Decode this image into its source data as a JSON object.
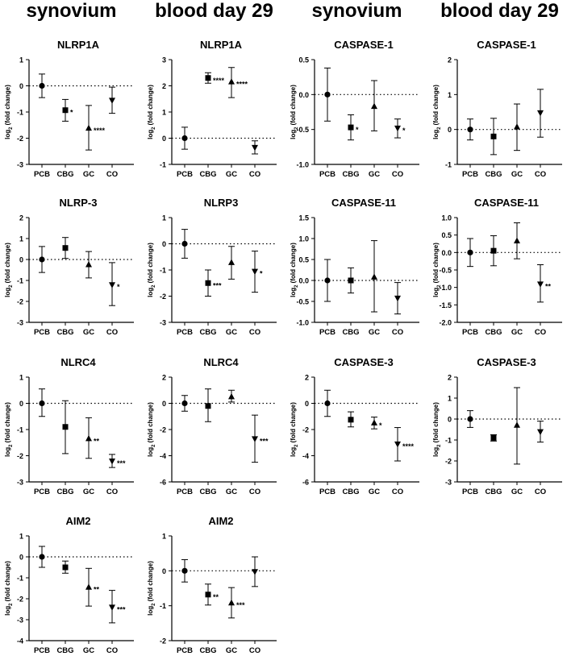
{
  "column_headers": [
    "synovium",
    "blood day 29",
    "synovium",
    "blood day 29"
  ],
  "ylabel": "log2 (fold change)",
  "chart_data": [
    {
      "type": "scatter",
      "title": "NLRP1A",
      "categories": [
        "PCB",
        "CBG",
        "GC",
        "CO"
      ],
      "ylim": [
        -3,
        1
      ],
      "yticks": [
        -3,
        -2,
        -1,
        0,
        1
      ],
      "markers": [
        "circle",
        "square",
        "triangle-up",
        "triangle-down"
      ],
      "points": [
        {
          "mean": 0,
          "low": -0.45,
          "high": 0.45,
          "sig": ""
        },
        {
          "mean": -0.93,
          "low": -1.35,
          "high": -0.52,
          "sig": "*"
        },
        {
          "mean": -1.62,
          "low": -2.45,
          "high": -0.75,
          "sig": "****"
        },
        {
          "mean": -0.55,
          "low": -1.05,
          "high": -0.05,
          "sig": ""
        }
      ]
    },
    {
      "type": "scatter",
      "title": "NLRP1A",
      "categories": [
        "PCB",
        "CBG",
        "GC",
        "CO"
      ],
      "ylim": [
        -1,
        3
      ],
      "yticks": [
        -1,
        0,
        1,
        2,
        3
      ],
      "markers": [
        "circle",
        "square",
        "triangle-up",
        "triangle-down"
      ],
      "points": [
        {
          "mean": 0,
          "low": -0.42,
          "high": 0.42,
          "sig": ""
        },
        {
          "mean": 2.3,
          "low": 2.1,
          "high": 2.5,
          "sig": "****"
        },
        {
          "mean": 2.15,
          "low": 1.55,
          "high": 2.7,
          "sig": "****"
        },
        {
          "mean": -0.35,
          "low": -0.6,
          "high": -0.1,
          "sig": ""
        }
      ]
    },
    {
      "type": "scatter",
      "title": "CASPASE-1",
      "categories": [
        "PCB",
        "CBG",
        "GC",
        "CO"
      ],
      "ylim": [
        -1.0,
        0.5
      ],
      "yticks": [
        -1.0,
        -0.5,
        0.0,
        0.5
      ],
      "markers": [
        "circle",
        "square",
        "triangle-up",
        "triangle-down"
      ],
      "points": [
        {
          "mean": 0,
          "low": -0.38,
          "high": 0.38,
          "sig": ""
        },
        {
          "mean": -0.47,
          "low": -0.65,
          "high": -0.29,
          "sig": "*"
        },
        {
          "mean": -0.17,
          "low": -0.52,
          "high": 0.2,
          "sig": ""
        },
        {
          "mean": -0.48,
          "low": -0.62,
          "high": -0.35,
          "sig": "*"
        }
      ]
    },
    {
      "type": "scatter",
      "title": "CASPASE-1",
      "categories": [
        "PCB",
        "CBG",
        "GC",
        "CO"
      ],
      "ylim": [
        -1,
        2
      ],
      "yticks": [
        -1,
        0,
        1,
        2
      ],
      "markers": [
        "circle",
        "square",
        "triangle-up",
        "triangle-down"
      ],
      "points": [
        {
          "mean": 0,
          "low": -0.3,
          "high": 0.3,
          "sig": ""
        },
        {
          "mean": -0.2,
          "low": -0.72,
          "high": 0.32,
          "sig": ""
        },
        {
          "mean": 0.07,
          "low": -0.6,
          "high": 0.73,
          "sig": ""
        },
        {
          "mean": 0.48,
          "low": -0.22,
          "high": 1.15,
          "sig": ""
        }
      ]
    },
    {
      "type": "scatter",
      "title": "NLRP-3",
      "categories": [
        "PCB",
        "CBG",
        "GC",
        "CO"
      ],
      "ylim": [
        -3,
        2
      ],
      "yticks": [
        -3,
        -2,
        -1,
        0,
        1,
        2
      ],
      "markers": [
        "circle",
        "square",
        "triangle-up",
        "triangle-down"
      ],
      "points": [
        {
          "mean": 0,
          "low": -0.62,
          "high": 0.62,
          "sig": ""
        },
        {
          "mean": 0.55,
          "low": 0.05,
          "high": 1.05,
          "sig": ""
        },
        {
          "mean": -0.25,
          "low": -0.88,
          "high": 0.38,
          "sig": ""
        },
        {
          "mean": -1.2,
          "low": -2.2,
          "high": -0.15,
          "sig": "*"
        }
      ]
    },
    {
      "type": "scatter",
      "title": "NLRP3",
      "categories": [
        "PCB",
        "CBG",
        "GC",
        "CO"
      ],
      "ylim": [
        -3,
        1
      ],
      "yticks": [
        -3,
        -2,
        -1,
        0,
        1
      ],
      "markers": [
        "circle",
        "square",
        "triangle-up",
        "triangle-down"
      ],
      "points": [
        {
          "mean": 0,
          "low": -0.55,
          "high": 0.55,
          "sig": ""
        },
        {
          "mean": -1.5,
          "low": -2.0,
          "high": -1.0,
          "sig": "***"
        },
        {
          "mean": -0.72,
          "low": -1.35,
          "high": -0.1,
          "sig": ""
        },
        {
          "mean": -1.05,
          "low": -1.85,
          "high": -0.28,
          "sig": "*"
        }
      ]
    },
    {
      "type": "scatter",
      "title": "CASPASE-11",
      "categories": [
        "PCB",
        "CBG",
        "GC",
        "CO"
      ],
      "ylim": [
        -1,
        1.5
      ],
      "yticks": [
        -1,
        -0.5,
        0,
        0.5,
        1,
        1.5
      ],
      "markers": [
        "circle",
        "square",
        "triangle-up",
        "triangle-down"
      ],
      "points": [
        {
          "mean": 0,
          "low": -0.5,
          "high": 0.5,
          "sig": ""
        },
        {
          "mean": 0,
          "low": -0.3,
          "high": 0.3,
          "sig": ""
        },
        {
          "mean": 0.08,
          "low": -0.75,
          "high": 0.95,
          "sig": ""
        },
        {
          "mean": -0.42,
          "low": -0.8,
          "high": -0.05,
          "sig": ""
        }
      ]
    },
    {
      "type": "scatter",
      "title": "CASPASE-11",
      "categories": [
        "PCB",
        "CBG",
        "GC",
        "CO"
      ],
      "ylim": [
        -2.0,
        1.0
      ],
      "yticks": [
        -2.0,
        -1.5,
        -1.0,
        -0.5,
        0.0,
        0.5,
        1.0
      ],
      "markers": [
        "circle",
        "square",
        "triangle-up",
        "triangle-down"
      ],
      "points": [
        {
          "mean": 0,
          "low": -0.4,
          "high": 0.4,
          "sig": ""
        },
        {
          "mean": 0.05,
          "low": -0.38,
          "high": 0.48,
          "sig": ""
        },
        {
          "mean": 0.33,
          "low": -0.18,
          "high": 0.85,
          "sig": ""
        },
        {
          "mean": -0.9,
          "low": -1.42,
          "high": -0.35,
          "sig": "**"
        }
      ]
    },
    {
      "type": "scatter",
      "title": "NLRC4",
      "categories": [
        "PCB",
        "CBG",
        "GC",
        "CO"
      ],
      "ylim": [
        -3,
        1
      ],
      "yticks": [
        -3,
        -2,
        -1,
        0,
        1
      ],
      "markers": [
        "circle",
        "square",
        "triangle-up",
        "triangle-down"
      ],
      "points": [
        {
          "mean": 0,
          "low": -0.5,
          "high": 0.55,
          "sig": ""
        },
        {
          "mean": -0.9,
          "low": -1.92,
          "high": 0.1,
          "sig": ""
        },
        {
          "mean": -1.35,
          "low": -2.1,
          "high": -0.55,
          "sig": "**"
        },
        {
          "mean": -2.2,
          "low": -2.45,
          "high": -1.95,
          "sig": "***"
        }
      ]
    },
    {
      "type": "scatter",
      "title": "NLRC4",
      "categories": [
        "PCB",
        "CBG",
        "GC",
        "CO"
      ],
      "ylim": [
        -6,
        2
      ],
      "yticks": [
        -6,
        -4,
        -2,
        0,
        2
      ],
      "markers": [
        "circle",
        "square",
        "triangle-up",
        "triangle-down"
      ],
      "points": [
        {
          "mean": 0,
          "low": -0.6,
          "high": 0.6,
          "sig": ""
        },
        {
          "mean": -0.2,
          "low": -1.4,
          "high": 1.1,
          "sig": ""
        },
        {
          "mean": 0.5,
          "low": 0.1,
          "high": 1.0,
          "sig": ""
        },
        {
          "mean": -2.7,
          "low": -4.5,
          "high": -0.9,
          "sig": "***"
        }
      ]
    },
    {
      "type": "scatter",
      "title": "CASPASE-3",
      "categories": [
        "PCB",
        "CBG",
        "GC",
        "CO"
      ],
      "ylim": [
        -6,
        2
      ],
      "yticks": [
        -6,
        -4,
        -2,
        0,
        2
      ],
      "markers": [
        "circle",
        "square",
        "triangle-up",
        "triangle-down"
      ],
      "points": [
        {
          "mean": 0,
          "low": -1.0,
          "high": 1.0,
          "sig": ""
        },
        {
          "mean": -1.25,
          "low": -1.8,
          "high": -0.65,
          "sig": ""
        },
        {
          "mean": -1.5,
          "low": -1.95,
          "high": -1.05,
          "sig": "*"
        },
        {
          "mean": -3.1,
          "low": -4.4,
          "high": -1.85,
          "sig": "****"
        }
      ]
    },
    {
      "type": "scatter",
      "title": "CASPASE-3",
      "categories": [
        "PCB",
        "CBG",
        "GC",
        "CO"
      ],
      "ylim": [
        -3,
        2
      ],
      "yticks": [
        -3,
        -2,
        -1,
        0,
        1,
        2
      ],
      "markers": [
        "circle",
        "square",
        "triangle-up",
        "triangle-down"
      ],
      "points": [
        {
          "mean": 0,
          "low": -0.4,
          "high": 0.4,
          "sig": ""
        },
        {
          "mean": -0.9,
          "low": -1.05,
          "high": -0.75,
          "sig": ""
        },
        {
          "mean": -0.3,
          "low": -2.15,
          "high": 1.5,
          "sig": ""
        },
        {
          "mean": -0.6,
          "low": -1.1,
          "high": -0.1,
          "sig": ""
        }
      ]
    },
    {
      "type": "scatter",
      "title": "AIM2",
      "categories": [
        "PCB",
        "CBG",
        "GC",
        "CO"
      ],
      "ylim": [
        -4,
        1
      ],
      "yticks": [
        -4,
        -3,
        -2,
        -1,
        0,
        1
      ],
      "markers": [
        "circle",
        "square",
        "triangle-up",
        "triangle-down"
      ],
      "points": [
        {
          "mean": 0,
          "low": -0.5,
          "high": 0.5,
          "sig": ""
        },
        {
          "mean": -0.5,
          "low": -0.78,
          "high": -0.2,
          "sig": ""
        },
        {
          "mean": -1.45,
          "low": -2.35,
          "high": -0.55,
          "sig": "**"
        },
        {
          "mean": -2.4,
          "low": -3.15,
          "high": -1.6,
          "sig": "***"
        }
      ]
    },
    {
      "type": "scatter",
      "title": "AIM2",
      "categories": [
        "PCB",
        "CBG",
        "GC",
        "CO"
      ],
      "ylim": [
        -2,
        1
      ],
      "yticks": [
        -2,
        -1,
        0,
        1
      ],
      "markers": [
        "circle",
        "square",
        "triangle-up",
        "triangle-down"
      ],
      "points": [
        {
          "mean": 0,
          "low": -0.32,
          "high": 0.32,
          "sig": ""
        },
        {
          "mean": -0.68,
          "low": -0.98,
          "high": -0.38,
          "sig": "**"
        },
        {
          "mean": -0.92,
          "low": -1.35,
          "high": -0.48,
          "sig": "***"
        },
        {
          "mean": -0.02,
          "low": -0.45,
          "high": 0.4,
          "sig": ""
        }
      ]
    }
  ]
}
